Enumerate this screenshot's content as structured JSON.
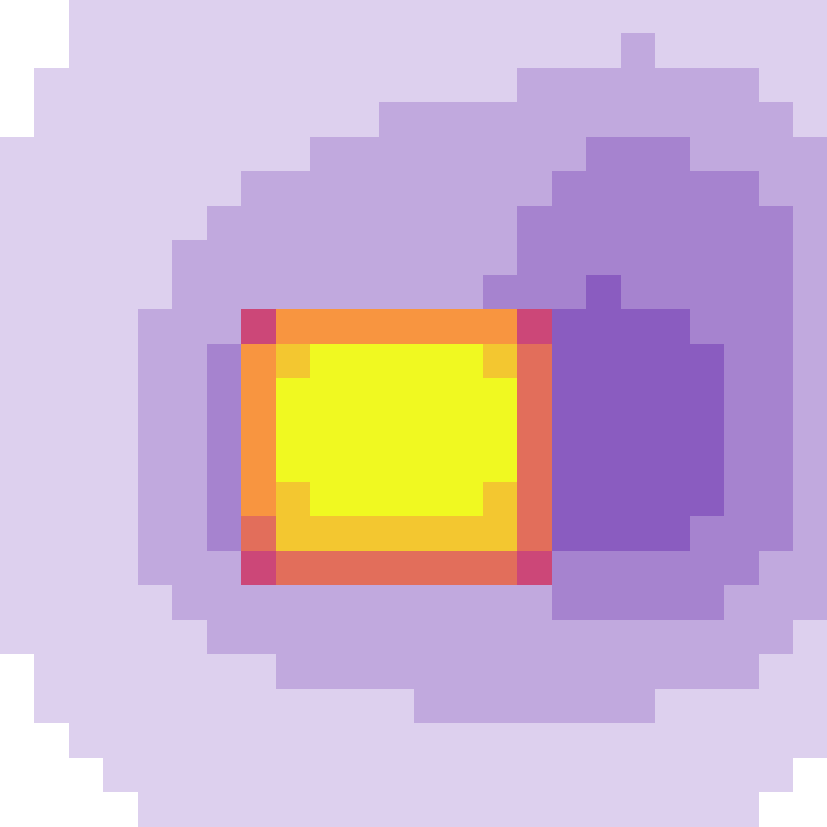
{
  "chart_data": {
    "type": "heatmap",
    "tick_labels": false,
    "color_range": [
      0,
      10
    ],
    "cells": [
      [
        0,
        0,
        1,
        1,
        1,
        1,
        1,
        1,
        1,
        1,
        1,
        1,
        1,
        1,
        1,
        1,
        1,
        1,
        1,
        1,
        1,
        1,
        1,
        1
      ],
      [
        0,
        0,
        1,
        1,
        1,
        1,
        1,
        1,
        1,
        1,
        1,
        1,
        1,
        1,
        1,
        1,
        1,
        1,
        2,
        1,
        1,
        1,
        1,
        1
      ],
      [
        0,
        1,
        1,
        1,
        1,
        1,
        1,
        1,
        1,
        1,
        1,
        1,
        1,
        1,
        1,
        2,
        2,
        2,
        2,
        2,
        2,
        2,
        1,
        1
      ],
      [
        0,
        1,
        1,
        1,
        1,
        1,
        1,
        1,
        1,
        1,
        1,
        2,
        2,
        2,
        2,
        2,
        2,
        2,
        2,
        2,
        2,
        2,
        2,
        1
      ],
      [
        1,
        1,
        1,
        1,
        1,
        1,
        1,
        1,
        1,
        2,
        2,
        2,
        2,
        2,
        2,
        2,
        2,
        3,
        3,
        3,
        2,
        2,
        2,
        2
      ],
      [
        1,
        1,
        1,
        1,
        1,
        1,
        1,
        2,
        2,
        2,
        2,
        2,
        2,
        2,
        2,
        2,
        3,
        3,
        3,
        3,
        3,
        3,
        2,
        2
      ],
      [
        1,
        1,
        1,
        1,
        1,
        1,
        2,
        2,
        2,
        2,
        2,
        2,
        2,
        2,
        2,
        3,
        3,
        3,
        3,
        3,
        3,
        3,
        3,
        2
      ],
      [
        1,
        1,
        1,
        1,
        1,
        2,
        2,
        2,
        2,
        2,
        2,
        2,
        2,
        2,
        2,
        3,
        3,
        3,
        3,
        3,
        3,
        3,
        3,
        2
      ],
      [
        1,
        1,
        1,
        1,
        1,
        2,
        2,
        2,
        2,
        2,
        2,
        2,
        2,
        2,
        3,
        3,
        3,
        4,
        3,
        3,
        3,
        3,
        3,
        2
      ],
      [
        1,
        1,
        1,
        1,
        2,
        2,
        2,
        6,
        8,
        8,
        8,
        8,
        8,
        8,
        8,
        6,
        4,
        4,
        4,
        4,
        3,
        3,
        3,
        2
      ],
      [
        1,
        1,
        1,
        1,
        2,
        2,
        3,
        8,
        9,
        10,
        10,
        10,
        10,
        10,
        9,
        7,
        4,
        4,
        4,
        4,
        4,
        3,
        3,
        2
      ],
      [
        1,
        1,
        1,
        1,
        2,
        2,
        3,
        8,
        10,
        10,
        10,
        10,
        10,
        10,
        10,
        7,
        4,
        4,
        4,
        4,
        4,
        3,
        3,
        2
      ],
      [
        1,
        1,
        1,
        1,
        2,
        2,
        3,
        8,
        10,
        10,
        10,
        10,
        10,
        10,
        10,
        7,
        4,
        4,
        4,
        4,
        4,
        3,
        3,
        2
      ],
      [
        1,
        1,
        1,
        1,
        2,
        2,
        3,
        8,
        10,
        10,
        10,
        10,
        10,
        10,
        10,
        7,
        4,
        4,
        4,
        4,
        4,
        3,
        3,
        2
      ],
      [
        1,
        1,
        1,
        1,
        2,
        2,
        3,
        8,
        9,
        10,
        10,
        10,
        10,
        10,
        9,
        7,
        4,
        4,
        4,
        4,
        4,
        3,
        3,
        2
      ],
      [
        1,
        1,
        1,
        1,
        2,
        2,
        3,
        7,
        9,
        9,
        9,
        9,
        9,
        9,
        9,
        7,
        4,
        4,
        4,
        4,
        3,
        3,
        3,
        2
      ],
      [
        1,
        1,
        1,
        1,
        2,
        2,
        2,
        6,
        7,
        7,
        7,
        7,
        7,
        7,
        7,
        6,
        3,
        3,
        3,
        3,
        3,
        3,
        2,
        2
      ],
      [
        1,
        1,
        1,
        1,
        1,
        2,
        2,
        2,
        2,
        2,
        2,
        2,
        2,
        2,
        2,
        2,
        3,
        3,
        3,
        3,
        3,
        2,
        2,
        2
      ],
      [
        1,
        1,
        1,
        1,
        1,
        1,
        2,
        2,
        2,
        2,
        2,
        2,
        2,
        2,
        2,
        2,
        2,
        2,
        2,
        2,
        2,
        2,
        2,
        1
      ],
      [
        0,
        1,
        1,
        1,
        1,
        1,
        1,
        1,
        2,
        2,
        2,
        2,
        2,
        2,
        2,
        2,
        2,
        2,
        2,
        2,
        2,
        2,
        1,
        1
      ],
      [
        0,
        1,
        1,
        1,
        1,
        1,
        1,
        1,
        1,
        1,
        1,
        1,
        2,
        2,
        2,
        2,
        2,
        2,
        2,
        1,
        1,
        1,
        1,
        1
      ],
      [
        0,
        0,
        1,
        1,
        1,
        1,
        1,
        1,
        1,
        1,
        1,
        1,
        1,
        1,
        1,
        1,
        1,
        1,
        1,
        1,
        1,
        1,
        1,
        1
      ],
      [
        0,
        0,
        0,
        1,
        1,
        1,
        1,
        1,
        1,
        1,
        1,
        1,
        1,
        1,
        1,
        1,
        1,
        1,
        1,
        1,
        1,
        1,
        1,
        0
      ],
      [
        0,
        0,
        0,
        0,
        1,
        1,
        1,
        1,
        1,
        1,
        1,
        1,
        1,
        1,
        1,
        1,
        1,
        1,
        1,
        1,
        1,
        1,
        0,
        0
      ]
    ]
  }
}
